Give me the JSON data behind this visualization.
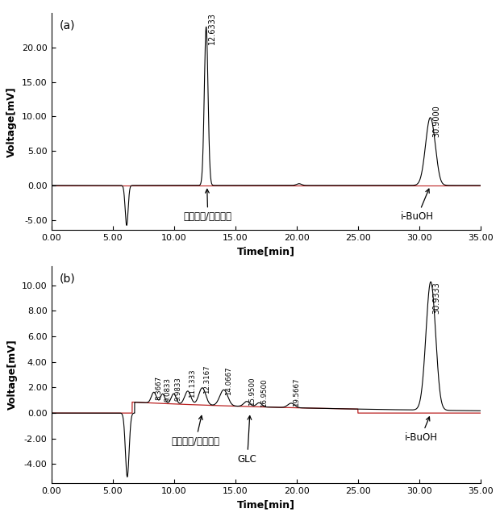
{
  "panel_a": {
    "label": "(a)",
    "xlim": [
      0.0,
      35.0
    ],
    "ylim": [
      -6.5,
      25.0
    ],
    "yticks": [
      -5.0,
      0.0,
      5.0,
      10.0,
      15.0,
      20.0
    ],
    "xticks": [
      0.0,
      5.0,
      10.0,
      15.0,
      20.0,
      25.0,
      30.0,
      35.0
    ],
    "xlabel": "Time[min]",
    "ylabel": "Voltage[mV]",
    "peak1_label": "12.6333",
    "peak2_label": "30.9000",
    "annotation1_text": "글리세롤/글리시돌",
    "annotation2_text": "i-BuOH",
    "baseline_color": "#bb2222",
    "signal_color": "#000000"
  },
  "panel_b": {
    "label": "(b)",
    "xlim": [
      0.0,
      35.0
    ],
    "ylim": [
      -5.5,
      11.5
    ],
    "yticks": [
      -4.0,
      -2.0,
      0.0,
      2.0,
      4.0,
      6.0,
      8.0,
      10.0
    ],
    "xticks": [
      0.0,
      5.0,
      10.0,
      15.0,
      20.0,
      25.0,
      30.0,
      35.0
    ],
    "xlabel": "Time[min]",
    "ylabel": "Voltage[mV]",
    "peak_main_label": "30.9333",
    "annotation1_text": "글리세롤/글리시돌",
    "annotation2_text": "GLC",
    "annotation3_text": "i-BuOH",
    "small_peaks": [
      {
        "x": 8.3667,
        "label": "8.3667"
      },
      {
        "x": 9.0833,
        "label": "9.0833"
      },
      {
        "x": 9.9833,
        "label": "9.9833"
      },
      {
        "x": 11.1333,
        "label": "11.1333"
      },
      {
        "x": 12.3167,
        "label": "12.3167"
      },
      {
        "x": 14.0667,
        "label": "14.0667"
      },
      {
        "x": 15.95,
        "label": "15.9500"
      },
      {
        "x": 16.95,
        "label": "16.9500"
      },
      {
        "x": 19.5667,
        "label": "19.5667"
      }
    ],
    "baseline_color": "#bb2222",
    "signal_color": "#000000"
  }
}
